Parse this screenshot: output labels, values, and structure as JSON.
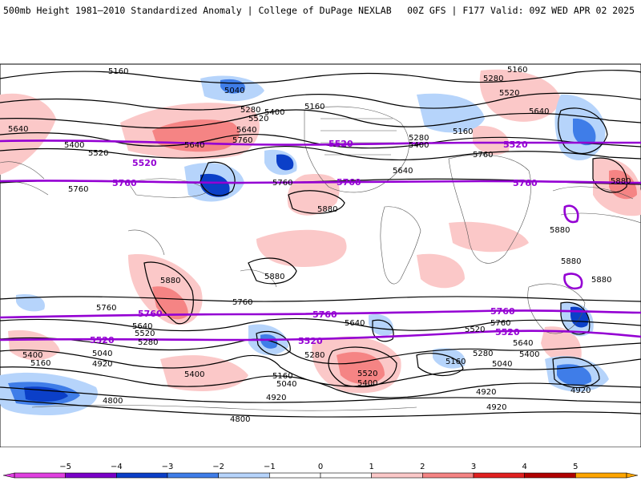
{
  "header": {
    "title_left": "500mb Height 1981–2010 Standardized Anomaly | College of DuPage NEXLAB",
    "title_right": "00Z GFS | F177 Valid: 09Z WED APR 02 2025"
  },
  "map": {
    "projection": "cylindrical-world",
    "anomaly_colors": {
      "neg5": "#e040e0",
      "neg4": "#7a00c8",
      "neg3": "#0b3fc8",
      "neg2": "#3f7de8",
      "neg1": "#b6d4fb",
      "zero": "#ffffff",
      "pos1": "#fbc8c8",
      "pos2": "#f58484",
      "pos3": "#e02020",
      "pos4": "#b00000",
      "pos5": "#ffa500"
    },
    "height_contour_color": "#000000",
    "highlight_contour_color": "#9400d3",
    "contour_labels": [
      "5160",
      "5040",
      "5280",
      "5400",
      "5520",
      "5640",
      "5760",
      "5880",
      "4920",
      "4800"
    ],
    "highlight_labels": [
      "5520",
      "5760"
    ]
  },
  "colorbar": {
    "ticks": [
      "−5",
      "−4",
      "−3",
      "−2",
      "−1",
      "0",
      "1",
      "2",
      "3",
      "4",
      "5"
    ],
    "colors": [
      "#e040e0",
      "#7a00c8",
      "#0b3fc8",
      "#3f7de8",
      "#b6d4fb",
      "#ffffff",
      "#ffffff",
      "#fbc8c8",
      "#f58484",
      "#e02020",
      "#b00000",
      "#ffa500"
    ]
  }
}
